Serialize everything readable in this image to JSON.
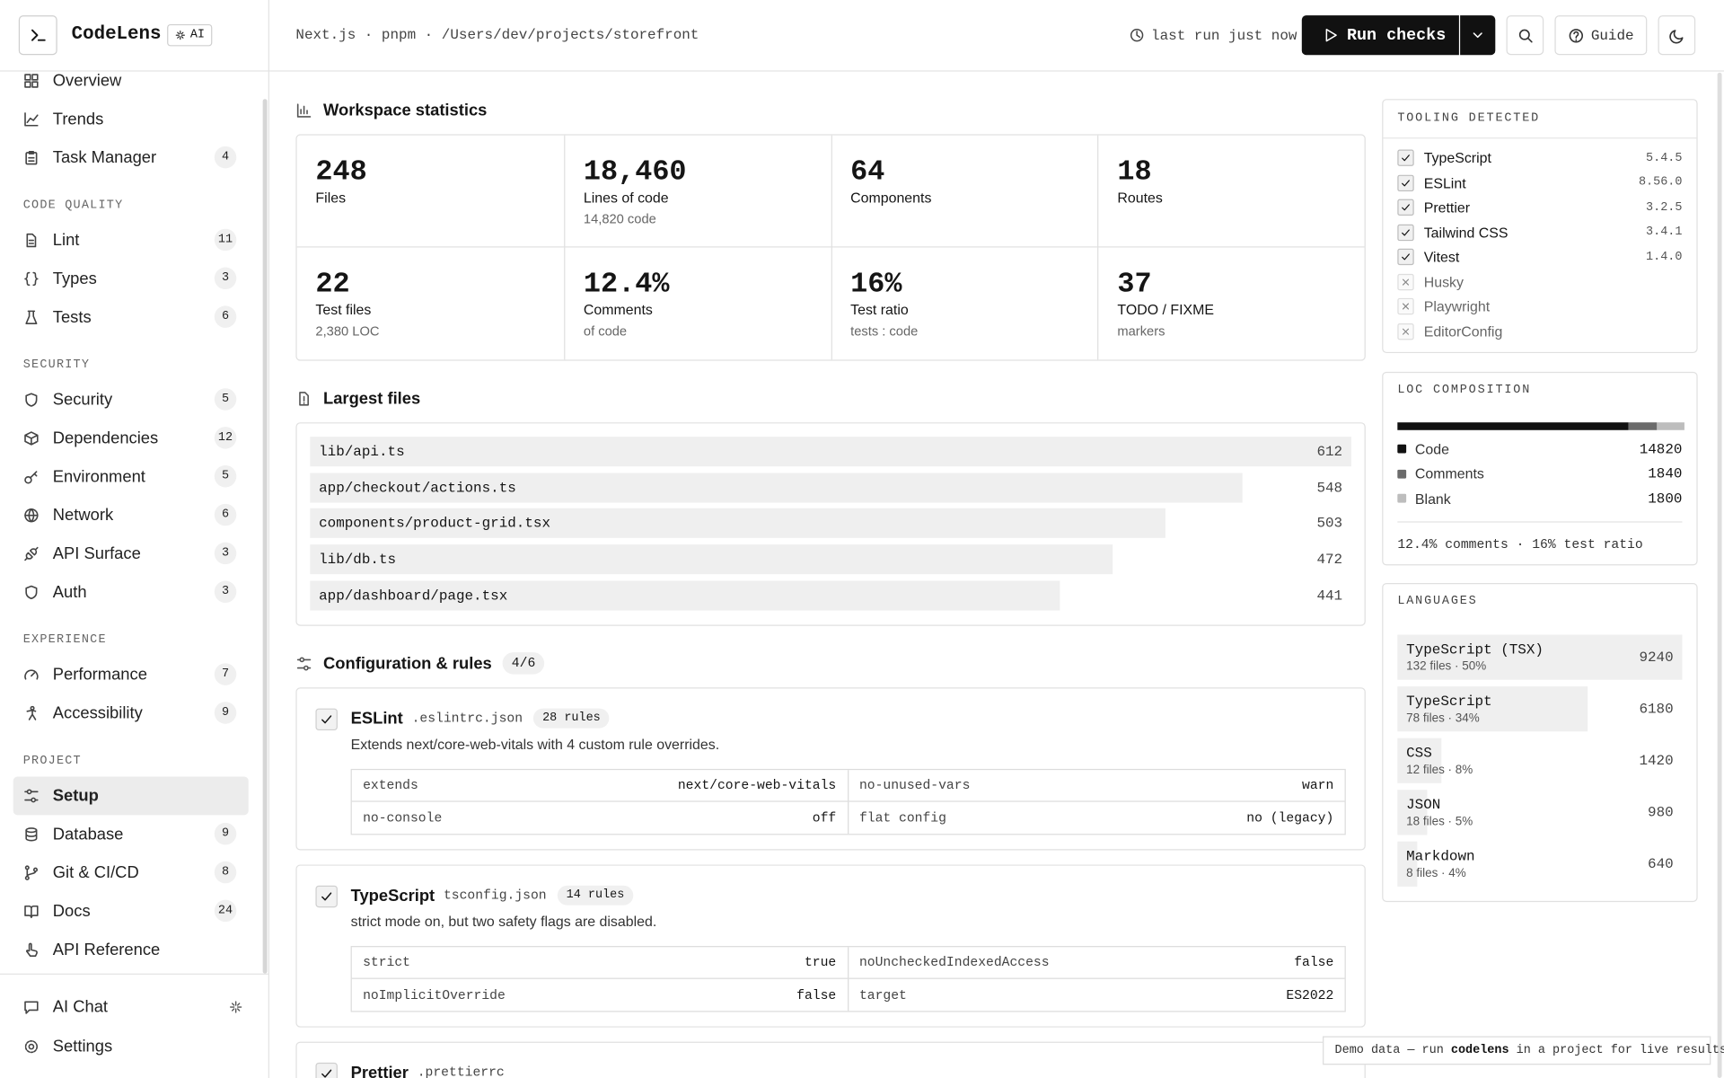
{
  "header": {
    "title": "CodeLens",
    "badge": "AI",
    "context": "Next.js · pnpm · /Users/dev/projects/storefront",
    "last_run": "last run just now",
    "run_button": "Run checks",
    "guide": "Guide"
  },
  "sidebar": {
    "groups": [
      {
        "items": [
          {
            "label": "Overview"
          },
          {
            "label": "Trends"
          },
          {
            "label": "Task Manager",
            "count": "4"
          }
        ]
      },
      {
        "title": "CODE QUALITY",
        "items": [
          {
            "label": "Lint",
            "count": "11"
          },
          {
            "label": "Types",
            "count": "3"
          },
          {
            "label": "Tests",
            "count": "6"
          }
        ]
      },
      {
        "title": "SECURITY",
        "items": [
          {
            "label": "Security",
            "count": "5"
          },
          {
            "label": "Dependencies",
            "count": "12"
          },
          {
            "label": "Environment",
            "count": "5"
          },
          {
            "label": "Network",
            "count": "6"
          },
          {
            "label": "API Surface",
            "count": "3"
          },
          {
            "label": "Auth",
            "count": "3"
          }
        ]
      },
      {
        "title": "EXPERIENCE",
        "items": [
          {
            "label": "Performance",
            "count": "7"
          },
          {
            "label": "Accessibility",
            "count": "9"
          }
        ]
      },
      {
        "title": "PROJECT",
        "items": [
          {
            "label": "Setup",
            "active": true
          },
          {
            "label": "Database",
            "count": "9"
          },
          {
            "label": "Git & CI/CD",
            "count": "8"
          },
          {
            "label": "Docs",
            "count": "24"
          },
          {
            "label": "API Reference"
          }
        ]
      }
    ],
    "footer": [
      {
        "label": "AI Chat"
      },
      {
        "label": "Settings"
      }
    ]
  },
  "stats": {
    "title": "Workspace statistics",
    "cards": [
      {
        "value": "248",
        "label": "Files"
      },
      {
        "value": "18,460",
        "label": "Lines of code",
        "note": "14,820 code"
      },
      {
        "value": "64",
        "label": "Components"
      },
      {
        "value": "18",
        "label": "Routes"
      },
      {
        "value": "22",
        "label": "Test files",
        "note": "2,380 LOC"
      },
      {
        "value": "12.4%",
        "label": "Comments",
        "note": "of code"
      },
      {
        "value": "16%",
        "label": "Test ratio",
        "note": "tests : code"
      },
      {
        "value": "37",
        "label": "TODO / FIXME",
        "note": "markers"
      }
    ]
  },
  "largest_files": {
    "title": "Largest files",
    "files": [
      {
        "path": "lib/api.ts",
        "lines": 612
      },
      {
        "path": "app/checkout/actions.ts",
        "lines": 548
      },
      {
        "path": "components/product-grid.tsx",
        "lines": 503
      },
      {
        "path": "lib/db.ts",
        "lines": 472
      },
      {
        "path": "app/dashboard/page.tsx",
        "lines": 441
      }
    ]
  },
  "config": {
    "title": "Configuration & rules",
    "badge": "4/6",
    "items": [
      {
        "name": "ESLint",
        "file": ".eslintrc.json",
        "rules": "28 rules",
        "description": "Extends next/core-web-vitals with 4 custom rule overrides.",
        "settings": [
          {
            "key": "extends",
            "value": "next/core-web-vitals"
          },
          {
            "key": "no-unused-vars",
            "value": "warn"
          },
          {
            "key": "no-console",
            "value": "off"
          },
          {
            "key": "flat config",
            "value": "no (legacy)"
          }
        ]
      },
      {
        "name": "TypeScript",
        "file": "tsconfig.json",
        "rules": "14 rules",
        "description": "strict mode on, but two safety flags are disabled.",
        "settings": [
          {
            "key": "strict",
            "value": "true"
          },
          {
            "key": "noUncheckedIndexedAccess",
            "value": "false"
          },
          {
            "key": "noImplicitOverride",
            "value": "false"
          },
          {
            "key": "target",
            "value": "ES2022"
          }
        ]
      },
      {
        "name": "Prettier",
        "file": ".prettierrc"
      }
    ]
  },
  "tooling": {
    "title": "TOOLING DETECTED",
    "items": [
      {
        "name": "TypeScript",
        "version": "5.4.5",
        "detected": true
      },
      {
        "name": "ESLint",
        "version": "8.56.0",
        "detected": true
      },
      {
        "name": "Prettier",
        "version": "3.2.5",
        "detected": true
      },
      {
        "name": "Tailwind CSS",
        "version": "3.4.1",
        "detected": true
      },
      {
        "name": "Vitest",
        "version": "1.4.0",
        "detected": true
      },
      {
        "name": "Husky",
        "detected": false
      },
      {
        "name": "Playwright",
        "detected": false
      },
      {
        "name": "EditorConfig",
        "detected": false
      }
    ]
  },
  "loc": {
    "title": "LOC COMPOSITION",
    "parts": [
      {
        "name": "Code",
        "value": 14820,
        "color": "#111111"
      },
      {
        "name": "Comments",
        "value": 1840,
        "color": "#6b6b6b"
      },
      {
        "name": "Blank",
        "value": 1800,
        "color": "#bdbdbd"
      }
    ],
    "summary": "12.4% comments · 16% test ratio"
  },
  "languages": {
    "title": "LANGUAGES",
    "items": [
      {
        "name": "TypeScript (TSX)",
        "meta": "132 files · 50%",
        "lines": 9240
      },
      {
        "name": "TypeScript",
        "meta": "78 files · 34%",
        "lines": 6180
      },
      {
        "name": "CSS",
        "meta": "12 files · 8%",
        "lines": 1420
      },
      {
        "name": "JSON",
        "meta": "18 files · 5%",
        "lines": 980
      },
      {
        "name": "Markdown",
        "meta": "8 files · 4%",
        "lines": 640
      }
    ]
  },
  "toast": {
    "before": "Demo data — run ",
    "code": "codelens",
    "after": " in a project for live results"
  }
}
